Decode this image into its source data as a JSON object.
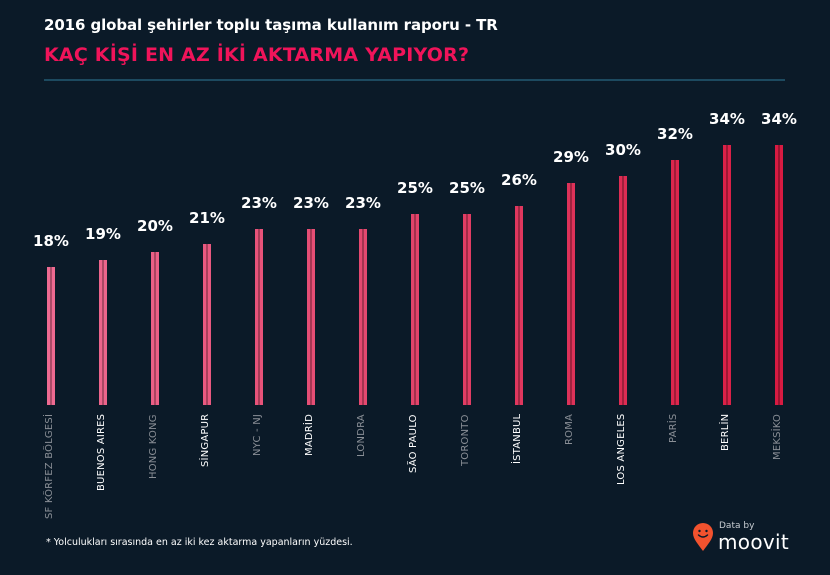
{
  "header": {
    "subtitle": "2016 global şehirler toplu taşıma kullanım raporu - TR",
    "title": "KAÇ KİŞİ EN AZ İKİ AKTARMA YAPIYOR?"
  },
  "footnote": "* Yolculukları sırasında en az iki kez aktarma yapanların yüzdesi.",
  "logo": {
    "small_text": "Data by",
    "brand_text": "moovit",
    "icon": "map-pin-smiley-icon",
    "color": "#f2522e"
  },
  "colors": {
    "background": "#0b1a28",
    "title": "#f0145a",
    "bar_light": "#ee6a91",
    "bar_dark": "#d81b42"
  },
  "chart_data": {
    "type": "bar",
    "title": "KAÇ KİŞİ EN AZ İKİ AKTARMA YAPIYOR?",
    "subtitle": "2016 global şehirler toplu taşıma kullanım raporu - TR",
    "xlabel": "",
    "ylabel": "",
    "ylim": [
      0,
      34
    ],
    "grid": false,
    "categories": [
      "SF KÖRFEZ BÖLGESİ",
      "BUENOS AIRES",
      "HONG KONG",
      "SİNGAPUR",
      "NYC - NJ",
      "MADRİD",
      "LONDRA",
      "SÃO PAULO",
      "TORONTO",
      "İSTANBUL",
      "ROMA",
      "LOS ANGELES",
      "PARİS",
      "BERLİN",
      "MEKSİKO"
    ],
    "values": [
      18,
      19,
      20,
      21,
      23,
      23,
      23,
      25,
      25,
      26,
      29,
      30,
      32,
      34,
      34
    ],
    "value_labels": [
      "18%",
      "19%",
      "20%",
      "21%",
      "23%",
      "23%",
      "23%",
      "25%",
      "25%",
      "26%",
      "29%",
      "30%",
      "32%",
      "34%",
      "34%"
    ],
    "label_style": [
      "dim",
      "bright",
      "dim",
      "bright",
      "dim",
      "bright",
      "dim",
      "bright",
      "dim",
      "bright",
      "dim",
      "bright",
      "dim",
      "bright",
      "dim"
    ]
  }
}
